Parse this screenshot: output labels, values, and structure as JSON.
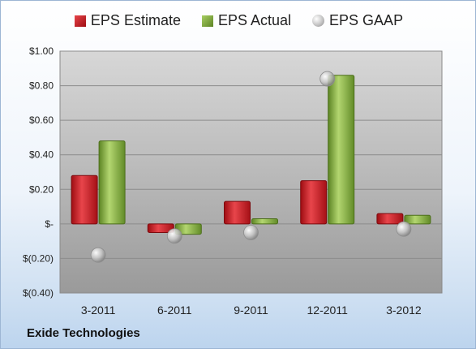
{
  "company": "Exide Technologies",
  "legend": {
    "eps_estimate": "EPS Estimate",
    "eps_actual": "EPS Actual",
    "eps_gaap": "EPS GAAP"
  },
  "colors": {
    "estimate": "#c0141c",
    "actual": "#7aa336",
    "gaap": "#b9b9b9"
  },
  "chart_data": {
    "type": "bar",
    "categories": [
      "3-2011",
      "6-2011",
      "9-2011",
      "12-2011",
      "3-2012"
    ],
    "series": [
      {
        "name": "EPS Estimate",
        "kind": "bar",
        "values": [
          0.28,
          -0.05,
          0.13,
          0.25,
          0.06
        ]
      },
      {
        "name": "EPS Actual",
        "kind": "bar",
        "values": [
          0.48,
          -0.06,
          0.03,
          0.86,
          0.05
        ]
      },
      {
        "name": "EPS GAAP",
        "kind": "marker",
        "values": [
          -0.18,
          -0.07,
          -0.05,
          0.84,
          -0.03
        ]
      }
    ],
    "ylim": [
      -0.4,
      1.0
    ],
    "yticks": [
      -0.4,
      -0.2,
      0,
      0.2,
      0.4,
      0.6,
      0.8,
      1.0
    ],
    "ytick_labels": [
      "$(0.40)",
      "$(0.20)",
      "$-",
      "$0.20",
      "$0.40",
      "$0.60",
      "$0.80",
      "$1.00"
    ],
    "grid": true,
    "legend_position": "top"
  }
}
